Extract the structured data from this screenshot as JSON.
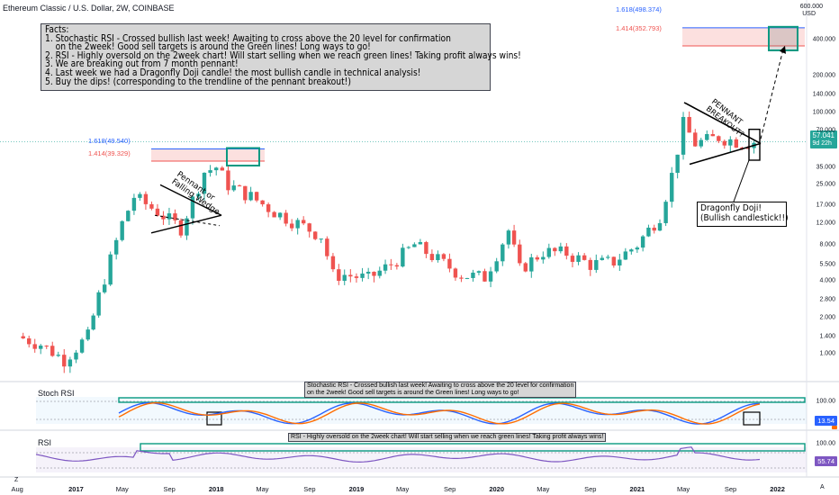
{
  "header": {
    "symbol_title": "Ethereum Classic / U.S. Dollar, 2W, COINBASE",
    "currency": "USD",
    "scale_unit": "600.000"
  },
  "price_badge": {
    "price": "57.041",
    "countdown": "9d 22h",
    "color": "#26a69a"
  },
  "facts_box": {
    "lines": [
      "Facts:",
      "1. Stochastic RSI - Crossed bullish last week! Awaiting to cross above the 20 level for confirmation",
      "    on the 2week! Good sell targets is around the Green lines! Long ways to go!",
      "2. RSI - Highly oversold on the 2week chart! Will start selling when we reach green lines! Taking profit always wins!",
      "3. We are breaking out from 7 month pennant!",
      "4. Last week we had a Dragonfly Doji candle! the most bullish candle in technical analysis!",
      "5. Buy the dips! (corresponding to the trendline of the pennant breakout!)"
    ]
  },
  "annotations": {
    "pennant_left": "Pennant or\nFalling Wedge",
    "pennant_right": "PENNANT\nBREAKOUT?",
    "dragonfly": [
      "Dragonfly Doji!",
      "(Bullish candlestick!!)"
    ],
    "fib_2018_a": "1.618(49.540)",
    "fib_2018_b": "1.414(39.329)",
    "fib_2022_a": "1.618(498.374)",
    "fib_2022_b": "1.414(352.793)"
  },
  "stoch_pane": {
    "label": "Stoch RSI",
    "note": "Stochastic RSI - Crossed bullish last week! Awaiting to cross above the 20 level for confirmation\non the 2week! Good sell targets is around the Green lines! Long ways to go!",
    "value_k": "13.54",
    "value_d": "",
    "level_top": "100.00",
    "colors": {
      "k": "#2962ff",
      "d": "#ff6d00"
    }
  },
  "rsi_pane": {
    "label": "RSI",
    "note": "RSI - Highly oversold on the 2week chart! Will start selling when we reach green lines! Taking profit always wins!",
    "value": "55.74",
    "level_top": "100.00",
    "color": "#7e57c2"
  },
  "axis": {
    "y_ticks": [
      "400.000",
      "200.000",
      "140.000",
      "100.000",
      "70.000",
      "35.000",
      "25.000",
      "17.000",
      "12.000",
      "8.000",
      "5.500",
      "4.000",
      "2.800",
      "2.000",
      "1.400",
      "1.000"
    ],
    "x_ticks": [
      "Aug",
      "2017",
      "May",
      "Sep",
      "2018",
      "May",
      "Sep",
      "2019",
      "May",
      "Sep",
      "2020",
      "May",
      "Sep",
      "2021",
      "May",
      "Sep",
      "2022"
    ],
    "corner_left": "Z",
    "corner_right": "A"
  },
  "chart_data": {
    "type": "candlestick",
    "title": "Ethereum Classic / U.S. Dollar, 2W, COINBASE",
    "y_scale": "log",
    "ylim": [
      0.6,
      600
    ],
    "x_range": [
      "2016-07",
      "2022-04"
    ],
    "colors": {
      "up": "#26a69a",
      "down": "#ef5350"
    },
    "closes": [
      {
        "date": "2016-08",
        "close": 1.4
      },
      {
        "date": "2016-10",
        "close": 1.2
      },
      {
        "date": "2016-12",
        "close": 0.9
      },
      {
        "date": "2017-02",
        "close": 1.4
      },
      {
        "date": "2017-03",
        "close": 3.0
      },
      {
        "date": "2017-05",
        "close": 12.0
      },
      {
        "date": "2017-06",
        "close": 20.0
      },
      {
        "date": "2017-08",
        "close": 15.0
      },
      {
        "date": "2017-10",
        "close": 11.0
      },
      {
        "date": "2017-12",
        "close": 32.0
      },
      {
        "date": "2018-01",
        "close": 35.0
      },
      {
        "date": "2018-02",
        "close": 25.0
      },
      {
        "date": "2018-04",
        "close": 20.0
      },
      {
        "date": "2018-06",
        "close": 15.0
      },
      {
        "date": "2018-08",
        "close": 12.0
      },
      {
        "date": "2018-10",
        "close": 9.5
      },
      {
        "date": "2018-11",
        "close": 4.5
      },
      {
        "date": "2018-12",
        "close": 4.5
      },
      {
        "date": "2019-02",
        "close": 4.2
      },
      {
        "date": "2019-04",
        "close": 5.5
      },
      {
        "date": "2019-06",
        "close": 8.0
      },
      {
        "date": "2019-08",
        "close": 6.0
      },
      {
        "date": "2019-10",
        "close": 4.5
      },
      {
        "date": "2019-12",
        "close": 4.3
      },
      {
        "date": "2020-02",
        "close": 10.5
      },
      {
        "date": "2020-03",
        "close": 5.0
      },
      {
        "date": "2020-05",
        "close": 7.0
      },
      {
        "date": "2020-07",
        "close": 6.8
      },
      {
        "date": "2020-09",
        "close": 5.5
      },
      {
        "date": "2020-11",
        "close": 5.8
      },
      {
        "date": "2021-01",
        "close": 8.0
      },
      {
        "date": "2021-03",
        "close": 14.0
      },
      {
        "date": "2021-04",
        "close": 30.0
      },
      {
        "date": "2021-05",
        "close": 80.0
      },
      {
        "date": "2021-06",
        "close": 55.0
      },
      {
        "date": "2021-08",
        "close": 62.0
      },
      {
        "date": "2021-10",
        "close": 56.0
      },
      {
        "date": "2021-11",
        "close": 57.041
      }
    ],
    "fib_levels": [
      {
        "label": "1.618",
        "value": 49.54
      },
      {
        "label": "1.414",
        "value": 39.329
      },
      {
        "label": "1.618",
        "value": 498.374
      },
      {
        "label": "1.414",
        "value": 352.793
      }
    ]
  }
}
